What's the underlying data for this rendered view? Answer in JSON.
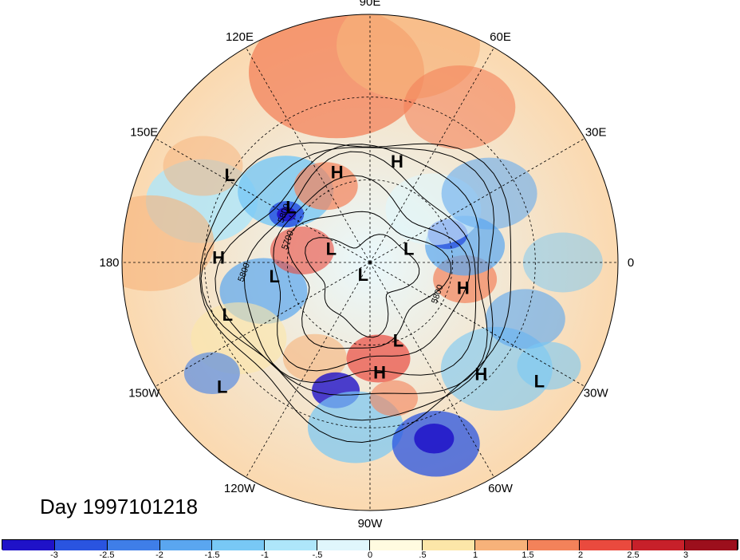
{
  "title": "Day 1997101218",
  "lon_labels": [
    {
      "text": "90E",
      "deg": 90
    },
    {
      "text": "60E",
      "deg": 60
    },
    {
      "text": "30E",
      "deg": 30
    },
    {
      "text": "0",
      "deg": 0
    },
    {
      "text": "30W",
      "deg": -30
    },
    {
      "text": "60W",
      "deg": -60
    },
    {
      "text": "90W",
      "deg": -90
    },
    {
      "text": "120W",
      "deg": -120
    },
    {
      "text": "150W",
      "deg": -150
    },
    {
      "text": "180",
      "deg": 180
    },
    {
      "text": "150E",
      "deg": 150
    },
    {
      "text": "120E",
      "deg": 120
    }
  ],
  "pressure_centers": [
    {
      "type": "H",
      "lon": 110,
      "lat": 55
    },
    {
      "type": "H",
      "lon": 75,
      "lat": 52
    },
    {
      "type": "L",
      "lon": 148,
      "lat": 30
    },
    {
      "type": "L",
      "lon": 145,
      "lat": 55
    },
    {
      "type": "H",
      "lon": 178,
      "lat": 35
    },
    {
      "type": "L",
      "lon": -172,
      "lat": 55
    },
    {
      "type": "L",
      "lon": -160,
      "lat": 35
    },
    {
      "type": "L",
      "lon": 160,
      "lat": 75
    },
    {
      "type": "L",
      "lon": 20,
      "lat": 75
    },
    {
      "type": "L",
      "lon": -120,
      "lat": 85
    },
    {
      "type": "H",
      "lon": -15,
      "lat": 55
    },
    {
      "type": "L",
      "lon": -70,
      "lat": 60
    },
    {
      "type": "H",
      "lon": -85,
      "lat": 50
    },
    {
      "type": "H",
      "lon": -45,
      "lat": 33
    },
    {
      "type": "L",
      "lon": -35,
      "lat": 15
    },
    {
      "type": "L",
      "lon": -140,
      "lat": 20
    }
  ],
  "contour_labels": [
    {
      "text": "5800",
      "lon": 150,
      "lat": 55
    },
    {
      "text": "5700",
      "lon": 165,
      "lat": 60
    },
    {
      "text": "5800",
      "lon": -175,
      "lat": 45
    },
    {
      "text": "5800",
      "lon": -25,
      "lat": 62
    }
  ],
  "colorbar": {
    "tick_labels": [
      "-3",
      "-2.5",
      "-2",
      "-1.5",
      "-1",
      "-.5",
      "0",
      ".5",
      "1",
      "1.5",
      "2",
      "2.5",
      "3"
    ],
    "colors": [
      "#1f12c8",
      "#2a54e0",
      "#3f7ee8",
      "#5aa6f0",
      "#78c8f5",
      "#aee6fa",
      "#e0f6fc",
      "#fffbe0",
      "#fce6a8",
      "#f7b27a",
      "#f3825a",
      "#ea4a3e",
      "#c7202a",
      "#9c0f1c"
    ]
  },
  "colors": {
    "cold": "#3f7ee8",
    "warm": "#f3825a",
    "ocean_fill": "#fde9c8"
  }
}
